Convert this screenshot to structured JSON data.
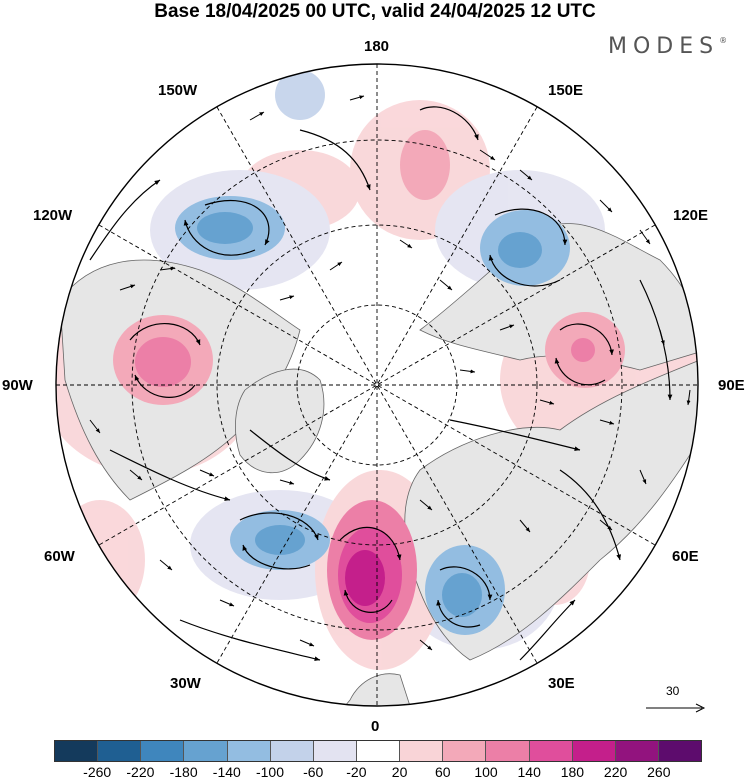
{
  "title": "Base 18/04/2025 00 UTC, valid 24/04/2025 12 UTC",
  "brand": {
    "name": "MODES",
    "mark": "®"
  },
  "longitude_labels": {
    "l180": "180",
    "l150w": "150W",
    "l150e": "150E",
    "l120w": "120W",
    "l120e": "120E",
    "l90w": "90W",
    "l90e": "90E",
    "l60w": "60W",
    "l60e": "60E",
    "l30w": "30W",
    "l30e": "30E",
    "l0": "0"
  },
  "reference_vector": {
    "value": "30"
  },
  "colorbar": {
    "colors": [
      "#143a5c",
      "#1f5f92",
      "#3f86bd",
      "#66a2d0",
      "#93bde1",
      "#c3d2ea",
      "#e3e3f1",
      "#ffffff",
      "#f9d4d7",
      "#f3a9b9",
      "#ec7fa7",
      "#e04e9c",
      "#c41f8b",
      "#92137e",
      "#5d0c6d"
    ],
    "ticks": [
      "-260",
      "-220",
      "-180",
      "-140",
      "-100",
      "-60",
      "-20",
      "20",
      "60",
      "100",
      "140",
      "180",
      "220",
      "260"
    ]
  },
  "anomaly_centers": [
    {
      "name": "pacific-low",
      "sign": "negative",
      "strength": 3
    },
    {
      "name": "siberia-low",
      "sign": "negative",
      "strength": 3
    },
    {
      "name": "canada-high",
      "sign": "positive",
      "strength": 3
    },
    {
      "name": "central-asia-high",
      "sign": "positive",
      "strength": 2
    },
    {
      "name": "atlantic-low",
      "sign": "negative",
      "strength": 3
    },
    {
      "name": "europe-high",
      "sign": "positive",
      "strength": 5
    },
    {
      "name": "black-sea-low",
      "sign": "negative",
      "strength": 3
    },
    {
      "name": "bering-high",
      "sign": "positive",
      "strength": 1
    }
  ]
}
